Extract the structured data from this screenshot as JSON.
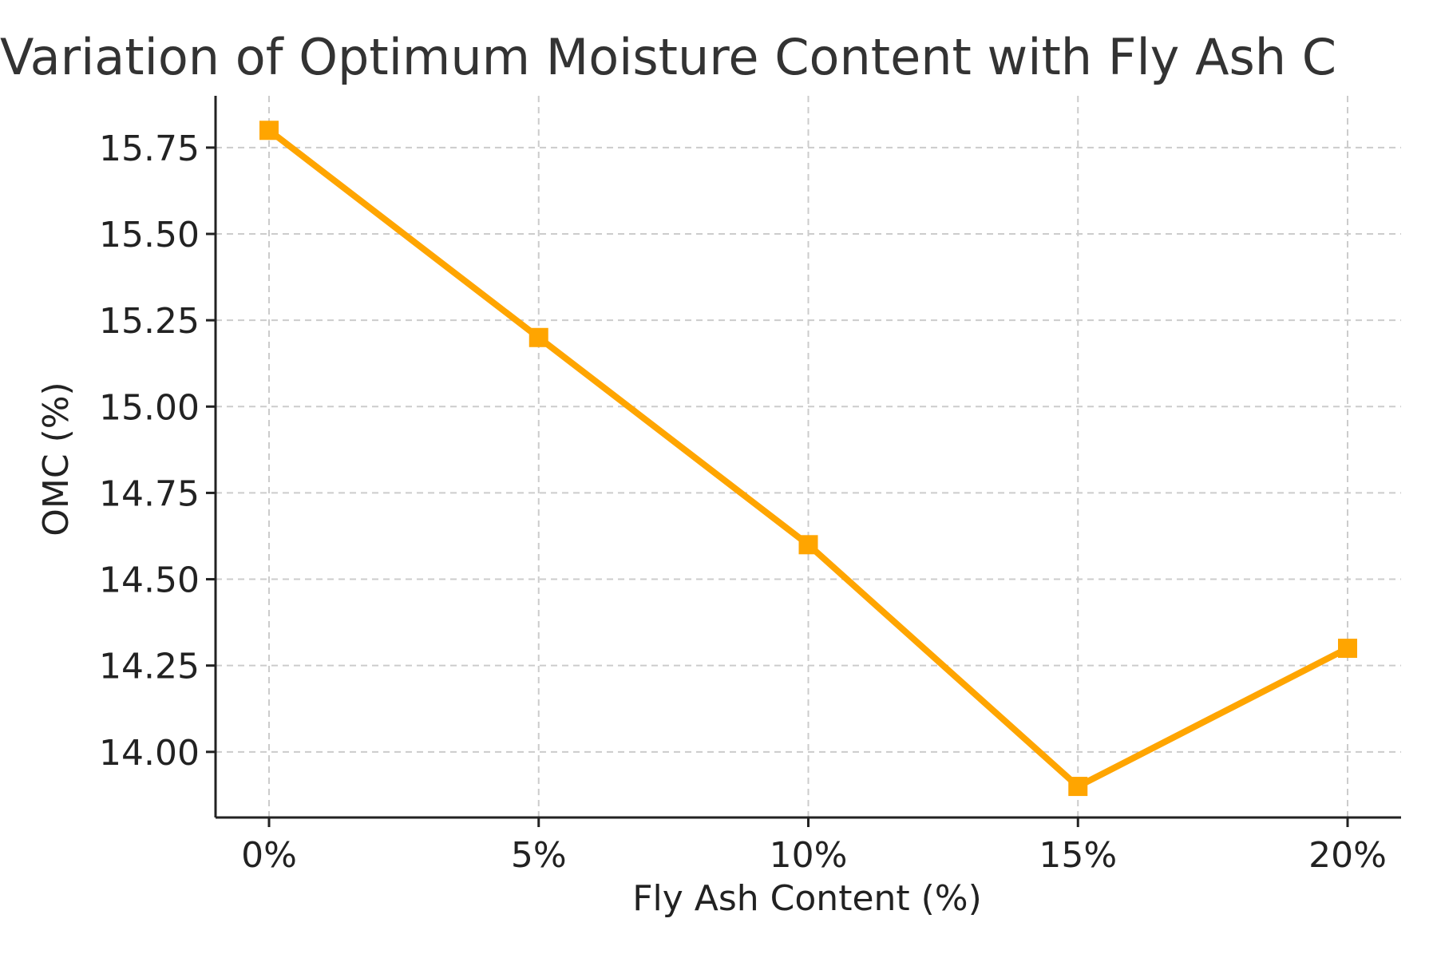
{
  "chart_data": {
    "type": "line",
    "title": "Variation of Optimum Moisture Content with Fly Ash C",
    "xlabel": "Fly Ash Content (%)",
    "ylabel": "OMC (%)",
    "categories": [
      "0%",
      "5%",
      "10%",
      "15%",
      "20%"
    ],
    "series": [
      {
        "values": [
          15.8,
          15.2,
          14.6,
          13.9,
          14.3
        ],
        "color": "#FFA500",
        "marker": "square"
      }
    ],
    "ylim": [
      13.81,
      15.9
    ],
    "yticks": [
      14.0,
      14.25,
      14.5,
      14.75,
      15.0,
      15.25,
      15.5,
      15.75
    ],
    "ytick_labels": [
      "14.00",
      "14.25",
      "14.50",
      "14.75",
      "15.00",
      "15.25",
      "15.50",
      "15.75"
    ],
    "grid": true,
    "grid_style": "dashed",
    "legend": "none"
  }
}
